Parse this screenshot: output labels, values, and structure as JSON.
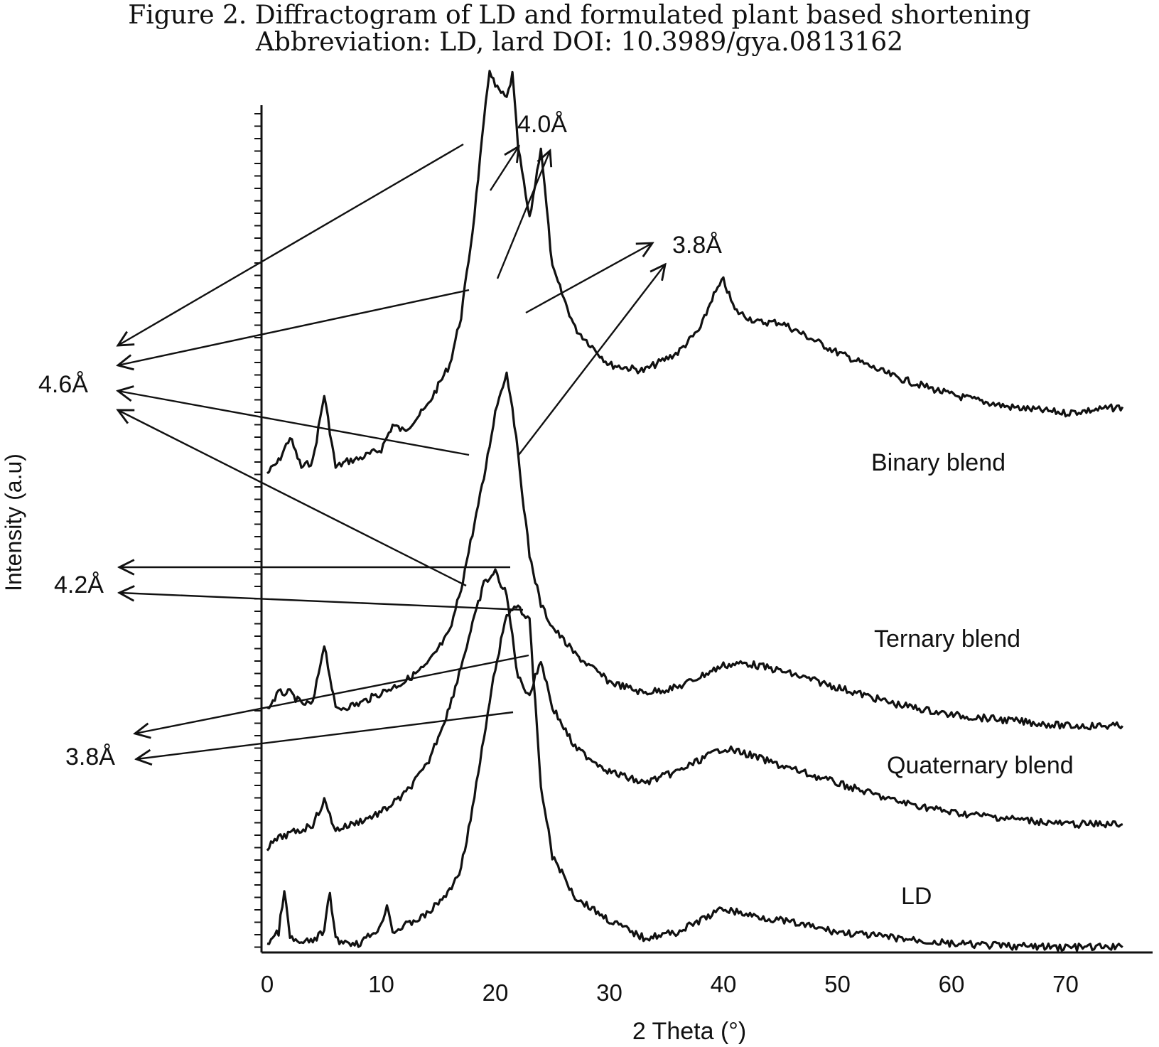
{
  "caption": {
    "line1": "Figure 2. Diffractogram of LD and formulated plant based shortening",
    "line2": "Abbreviation: LD, lard DOI: 10.3989/gya.0813162"
  },
  "chart_data": {
    "type": "line",
    "xlabel": "2 Theta (°)",
    "ylabel": "Intensity (a.u)",
    "xlim": [
      0,
      75
    ],
    "xticks": [
      0,
      10,
      20,
      30,
      40,
      50,
      60,
      70
    ],
    "grid": false,
    "series": [
      {
        "name": "Binary blend",
        "x": [
          0,
          1,
          2,
          3,
          4,
          5,
          6,
          7,
          8,
          10,
          11,
          12,
          14,
          16,
          17,
          18,
          19,
          19.5,
          20,
          21,
          21.5,
          22,
          23,
          24,
          25,
          27,
          30,
          33,
          36,
          38,
          39,
          40,
          41,
          43,
          45,
          50,
          55,
          60,
          65,
          70,
          75
        ],
        "y": [
          2600,
          2700,
          2900,
          2650,
          2700,
          3250,
          2650,
          2700,
          2720,
          2800,
          3000,
          2950,
          3150,
          3500,
          3900,
          4600,
          5500,
          5950,
          5800,
          5700,
          5900,
          5300,
          4700,
          5300,
          4300,
          3800,
          3500,
          3450,
          3600,
          3800,
          4050,
          4200,
          3950,
          3850,
          3850,
          3600,
          3400,
          3250,
          3150,
          3100,
          3150
        ]
      },
      {
        "name": "Ternary blend",
        "x": [
          0,
          1,
          2,
          3,
          4,
          5,
          6,
          8,
          10,
          12,
          14,
          16,
          17,
          18,
          19,
          20,
          20.5,
          21,
          21.5,
          22,
          23,
          24,
          25,
          27,
          30,
          33,
          36,
          38,
          40,
          42,
          45,
          50,
          55,
          60,
          65,
          70,
          75
        ],
        "y": [
          2000,
          2150,
          2150,
          2050,
          2050,
          2600,
          2000,
          2050,
          2150,
          2250,
          2400,
          2700,
          3100,
          3600,
          4100,
          4700,
          4900,
          5050,
          4750,
          4300,
          3400,
          2950,
          2750,
          2500,
          2250,
          2150,
          2200,
          2300,
          2400,
          2420,
          2350,
          2200,
          2050,
          1950,
          1900,
          1850,
          1850
        ]
      },
      {
        "name": "Quaternary blend",
        "x": [
          0,
          1,
          2,
          3,
          4,
          5,
          6,
          8,
          10,
          12,
          14,
          16,
          18,
          19,
          20,
          21,
          22,
          23,
          24,
          25,
          27,
          30,
          33,
          36,
          38,
          40,
          42,
          45,
          50,
          55,
          60,
          65,
          70,
          75
        ],
        "y": [
          700,
          780,
          820,
          850,
          900,
          1100,
          850,
          920,
          1000,
          1150,
          1400,
          1900,
          2600,
          2950,
          3050,
          2850,
          2150,
          2000,
          2300,
          1900,
          1550,
          1350,
          1250,
          1350,
          1450,
          1550,
          1500,
          1400,
          1250,
          1100,
          1000,
          950,
          900,
          900
        ]
      },
      {
        "name": "LD",
        "x": [
          0,
          1,
          1.5,
          2,
          3,
          4,
          5,
          5.5,
          6,
          8,
          9,
          10,
          10.5,
          11,
          12,
          14,
          16,
          17,
          18,
          19,
          20,
          21,
          22,
          22.5,
          23,
          23.5,
          24,
          25,
          27,
          30,
          33,
          36,
          38,
          40,
          42,
          45,
          50,
          55,
          60,
          65,
          70,
          75
        ],
        "y": [
          50,
          150,
          500,
          100,
          50,
          80,
          150,
          500,
          80,
          50,
          120,
          200,
          400,
          150,
          200,
          300,
          500,
          700,
          1200,
          1800,
          2400,
          2850,
          2950,
          2850,
          2800,
          2100,
          1400,
          800,
          450,
          250,
          100,
          150,
          250,
          350,
          300,
          250,
          150,
          100,
          50,
          30,
          20,
          20
        ]
      }
    ],
    "annotations": [
      "4.0Å",
      "3.8Å",
      "4.6Å",
      "4.2Å",
      "3.8Å"
    ]
  }
}
